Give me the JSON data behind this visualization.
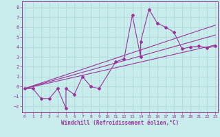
{
  "xlabel": "Windchill (Refroidissement éolien,°C)",
  "background_color": "#c8ecec",
  "grid_color": "#aad4d4",
  "line_color": "#993399",
  "x_ticks": [
    0,
    1,
    2,
    3,
    4,
    5,
    6,
    7,
    8,
    9,
    10,
    11,
    12,
    13,
    14,
    15,
    16,
    17,
    18,
    19,
    20,
    21,
    22,
    23
  ],
  "xlim": [
    -0.3,
    23.3
  ],
  "ylim": [
    -2.6,
    8.6
  ],
  "yticks": [
    -2,
    -1,
    0,
    1,
    2,
    3,
    4,
    5,
    6,
    7,
    8
  ],
  "scatter_x": [
    0,
    1,
    2,
    3,
    4,
    5,
    5,
    6,
    7,
    8,
    9,
    11,
    12,
    13,
    14,
    14,
    15,
    16,
    17,
    18,
    19,
    20,
    21,
    22,
    23
  ],
  "scatter_y": [
    -0.2,
    -0.2,
    -1.2,
    -1.2,
    -0.2,
    -2.2,
    -0.2,
    -0.8,
    1.0,
    0.0,
    -0.2,
    2.5,
    2.8,
    7.2,
    3.0,
    4.5,
    7.8,
    6.4,
    6.0,
    5.5,
    3.8,
    4.0,
    4.1,
    3.9,
    4.1
  ],
  "line1_x": [
    0,
    23
  ],
  "line1_y": [
    -0.2,
    6.2
  ],
  "line2_x": [
    0,
    23
  ],
  "line2_y": [
    -0.2,
    5.2
  ],
  "line3_x": [
    0,
    23
  ],
  "line3_y": [
    -0.2,
    4.2
  ]
}
